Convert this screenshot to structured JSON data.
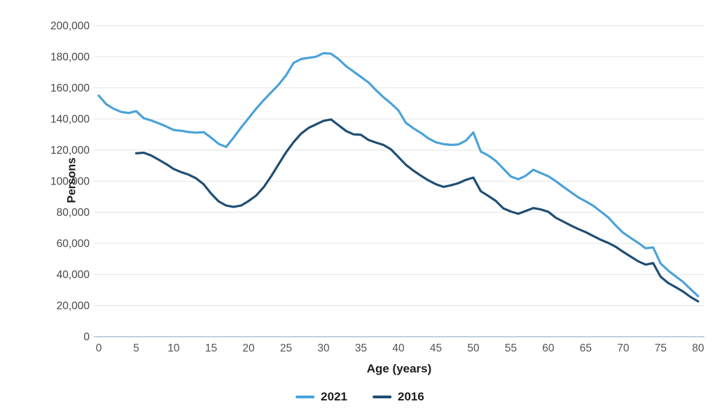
{
  "chart_data": {
    "type": "line",
    "title": "",
    "xlabel": "Age (years)",
    "ylabel": "Persons",
    "xlim": [
      0,
      80
    ],
    "ylim": [
      0,
      200000
    ],
    "x_ticks": [
      0,
      5,
      10,
      15,
      20,
      25,
      30,
      35,
      40,
      45,
      50,
      55,
      60,
      65,
      70,
      75,
      80
    ],
    "x_tick_labels": [
      "0",
      "5",
      "10",
      "15",
      "20",
      "25",
      "30",
      "35",
      "40",
      "45",
      "50",
      "55",
      "60",
      "65",
      "70",
      "75",
      "80"
    ],
    "y_ticks": [
      0,
      20000,
      40000,
      60000,
      80000,
      100000,
      120000,
      140000,
      160000,
      180000,
      200000
    ],
    "y_tick_labels": [
      "0",
      "20,000",
      "40,000",
      "60,000",
      "80,000",
      "100,000",
      "120,000",
      "140,000",
      "160,000",
      "180,000",
      "200,000"
    ],
    "grid": "horizontal",
    "legend_position": "bottom",
    "series": [
      {
        "name": "2021",
        "color": "#4AA2D9",
        "start_age": 0,
        "values": [
          155000,
          149500,
          146500,
          144500,
          143800,
          145000,
          140500,
          139000,
          137200,
          135200,
          132900,
          132400,
          131600,
          131200,
          131500,
          128000,
          124000,
          122000,
          128000,
          134500,
          140500,
          146500,
          152000,
          157000,
          162000,
          168000,
          176000,
          178500,
          179300,
          180000,
          182300,
          182000,
          178500,
          174000,
          170500,
          167000,
          163500,
          158500,
          154000,
          150000,
          145500,
          137500,
          134000,
          131000,
          127500,
          125000,
          123800,
          123300,
          123600,
          126000,
          131300,
          119000,
          116500,
          113000,
          108000,
          103000,
          101200,
          103500,
          107300,
          105200,
          103200,
          100000,
          96400,
          93000,
          89600,
          87000,
          84200,
          80500,
          76700,
          71500,
          66800,
          63500,
          60300,
          56800,
          57400,
          47000,
          42500,
          38800,
          35200,
          30500,
          26000
        ]
      },
      {
        "name": "2016",
        "color": "#1E4E74",
        "start_age": 5,
        "values": [
          117900,
          118300,
          116500,
          113800,
          111000,
          107800,
          105800,
          104200,
          101800,
          98000,
          92000,
          87000,
          84300,
          83400,
          84300,
          87200,
          90700,
          96000,
          103000,
          110800,
          118500,
          125000,
          130500,
          134200,
          136500,
          138800,
          139700,
          136000,
          132300,
          130100,
          129800,
          126500,
          124800,
          123300,
          120500,
          115500,
          110500,
          106800,
          103500,
          100500,
          98000,
          96300,
          97300,
          98700,
          100800,
          102300,
          93500,
          90500,
          87300,
          82500,
          80500,
          79000,
          80800,
          82700,
          81800,
          80300,
          76500,
          74000,
          71500,
          69200,
          67200,
          64700,
          62300,
          60300,
          57800,
          54500,
          51500,
          48500,
          46300,
          47300,
          38500,
          34500,
          31800,
          29000,
          25500,
          22700
        ]
      }
    ]
  }
}
